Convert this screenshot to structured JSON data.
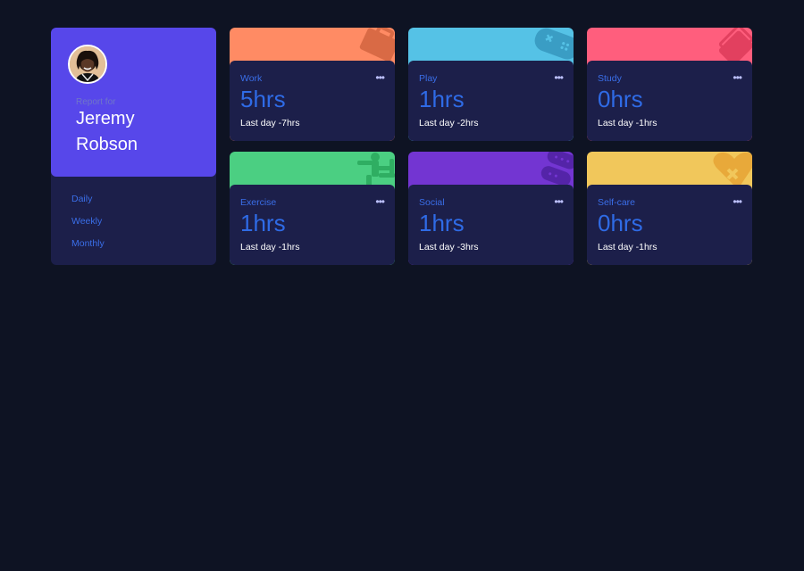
{
  "profile": {
    "report_for": "Report for",
    "first_name": "Jeremy",
    "last_name": "Robson",
    "avatar_icon": "user-avatar"
  },
  "periods": [
    {
      "label": "Daily",
      "color": "#3a6ee8"
    },
    {
      "label": "Weekly",
      "color": "#3a6ee8"
    },
    {
      "label": "Monthly",
      "color": "#3a6ee8"
    }
  ],
  "activities": [
    {
      "title": "Work",
      "hours": "5hrs",
      "previous": "Last day -7hrs",
      "color": "#ff8b64",
      "icon": "briefcase-icon",
      "menu": "•••"
    },
    {
      "title": "Play",
      "hours": "1hrs",
      "previous": "Last day -2hrs",
      "color": "#55c2e6",
      "icon": "gamepad-icon",
      "menu": "•••"
    },
    {
      "title": "Study",
      "hours": "0hrs",
      "previous": "Last day -1hrs",
      "color": "#ff5e7d",
      "icon": "book-icon",
      "menu": "•••"
    },
    {
      "title": "Exercise",
      "hours": "1hrs",
      "previous": "Last day -1hrs",
      "color": "#4bcf82",
      "icon": "runner-icon",
      "menu": "•••"
    },
    {
      "title": "Social",
      "hours": "1hrs",
      "previous": "Last day -3hrs",
      "color": "#7335d2",
      "icon": "chat-bubbles-icon",
      "menu": "•••"
    },
    {
      "title": "Self-care",
      "hours": "0hrs",
      "previous": "Last day -1hrs",
      "color": "#f1c75b",
      "icon": "heart-bandage-icon",
      "menu": "•••"
    }
  ],
  "colors": {
    "page_background": "#0e1323",
    "card_body": "#1c1f4a",
    "profile_accent": "#5747ea",
    "link_blue": "#3a6ee8",
    "hours_blue": "#2f6be6"
  }
}
